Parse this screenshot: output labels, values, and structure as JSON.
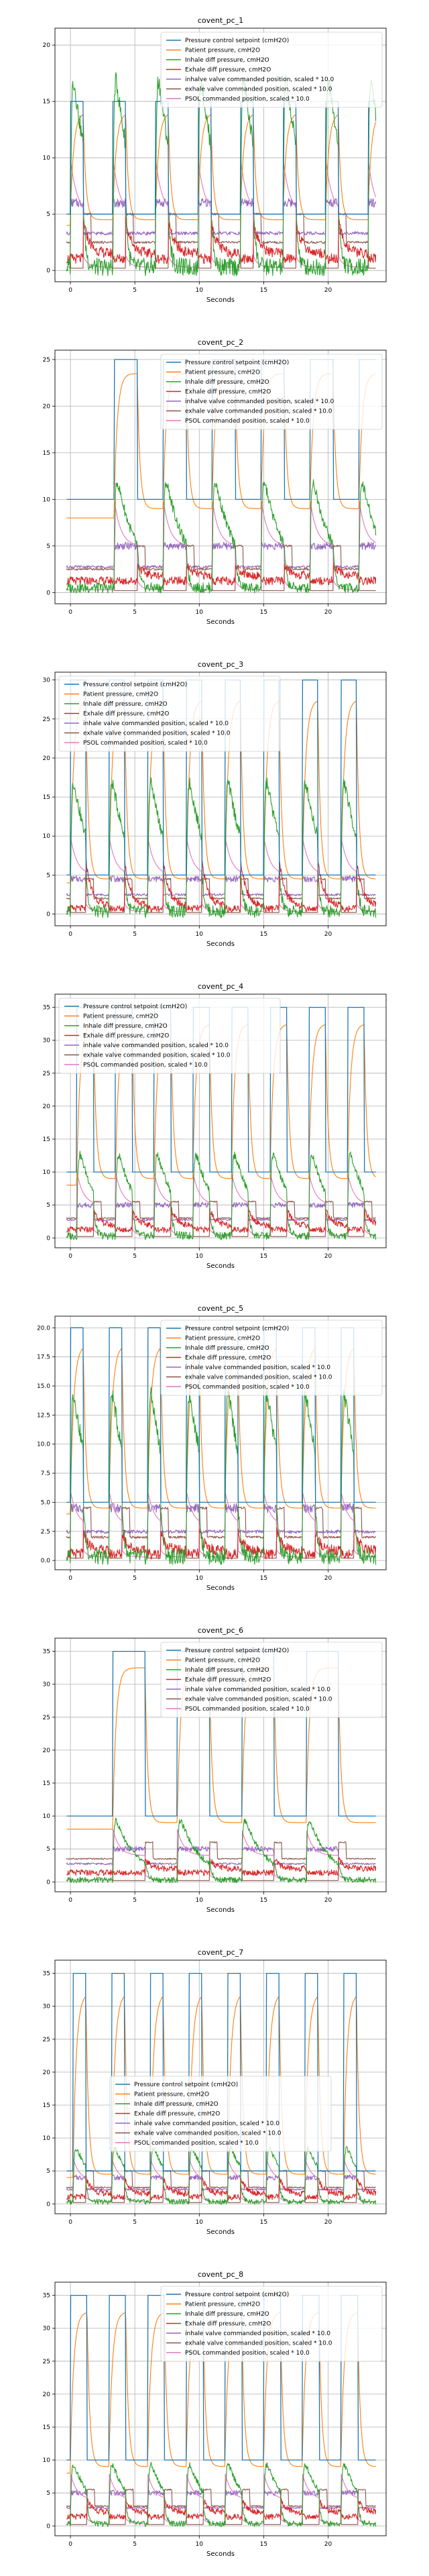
{
  "series_colors": [
    "#1f77b4",
    "#ff7f0e",
    "#2ca02c",
    "#d62728",
    "#9467bd",
    "#8c564b",
    "#e377c2"
  ],
  "chart_data": [
    {
      "type": "line",
      "title": "covent_pc_1",
      "xlabel": "Seconds",
      "ylabel": "",
      "xlim": [
        -1.2,
        24.5
      ],
      "ylim": [
        -1,
        21.5
      ],
      "xticks": [
        0,
        5,
        10,
        15,
        20
      ],
      "yticks": [
        0,
        5,
        10,
        15,
        20
      ],
      "grid": true,
      "legend_loc": "upper right",
      "breaths": [
        0,
        3.3,
        6.6,
        9.9,
        13.2,
        16.5,
        19.8,
        23.1
      ],
      "insp": 1.0,
      "levels": {
        "setpoint_high": 15,
        "setpoint_low": 5,
        "inhale_peak": 20,
        "inhale_base": 0.3,
        "exhale_peak": 4.5,
        "exhale_base": 1.5,
        "inhale_valve": 6.0,
        "exhale_valve": 2.5,
        "psol": 10
      },
      "series": [
        {
          "name": "Pressure control setpoint (cmH2O)"
        },
        {
          "name": "Patient pressure, cmH2O"
        },
        {
          "name": "Inhale diff pressure, cmH2O"
        },
        {
          "name": "Exhale diff pressure, cmH2O"
        },
        {
          "name": "inhalve valve commanded position, scaled * 10.0"
        },
        {
          "name": "exhale valve commanded position, scaled * 10.0"
        },
        {
          "name": "PSOL commanded position, scaled * 10.0"
        }
      ]
    },
    {
      "type": "line",
      "title": "covent_pc_2",
      "xlabel": "Seconds",
      "ylabel": "",
      "xlim": [
        -1.2,
        24.5
      ],
      "ylim": [
        -1.2,
        26
      ],
      "xticks": [
        0,
        5,
        10,
        15,
        20
      ],
      "yticks": [
        0,
        5,
        10,
        15,
        20,
        25
      ],
      "grid": true,
      "legend_loc": "upper right",
      "breaths": [
        3.4,
        7.2,
        11.0,
        14.8,
        18.6,
        22.4
      ],
      "insp": 1.8,
      "levels": {
        "setpoint_high": 25,
        "setpoint_low": 10,
        "inhale_peak": 14,
        "inhale_base": 0.5,
        "exhale_peak": 3.0,
        "exhale_base": 1.8,
        "inhale_valve": 5.0,
        "exhale_valve": 2.5,
        "psol": 10
      },
      "series": [
        {
          "name": "Pressure control setpoint (cmH2O)"
        },
        {
          "name": "Patient pressure, cmH2O"
        },
        {
          "name": "Inhale diff pressure, cmH2O"
        },
        {
          "name": "Exhale diff pressure, cmH2O"
        },
        {
          "name": "inhalve valve commanded position, scaled * 10.0"
        },
        {
          "name": "exhale valve commanded position, scaled * 10.0"
        },
        {
          "name": "PSOL commanded position, scaled * 10.0"
        }
      ]
    },
    {
      "type": "line",
      "title": "covent_pc_3",
      "xlabel": "Seconds",
      "ylabel": "",
      "xlim": [
        -1.2,
        24.5
      ],
      "ylim": [
        -1.5,
        31
      ],
      "xticks": [
        0,
        5,
        10,
        15,
        20
      ],
      "yticks": [
        0,
        5,
        10,
        15,
        20,
        25,
        30
      ],
      "grid": true,
      "legend_loc": "upper left",
      "breaths": [
        0,
        3.0,
        6.0,
        9.0,
        12.0,
        15.0,
        18.0,
        21.0
      ],
      "insp": 1.2,
      "levels": {
        "setpoint_high": 30,
        "setpoint_low": 5,
        "inhale_peak": 20,
        "inhale_base": 0.3,
        "exhale_peak": 7.0,
        "exhale_base": 1.0,
        "inhale_valve": 4.5,
        "exhale_valve": 2.0,
        "psol": 10
      },
      "series": [
        {
          "name": "Pressure control setpoint (cmH2O)"
        },
        {
          "name": "Patient pressure, cmH2O"
        },
        {
          "name": "Inhale diff pressure, cmH2O"
        },
        {
          "name": "Exhale diff pressure, cmH2O"
        },
        {
          "name": "inhale valve commanded position, scaled * 10.0"
        },
        {
          "name": "exhale valve commanded position, scaled * 10.0"
        },
        {
          "name": "PSOL commanded position, scaled * 10.0"
        }
      ]
    },
    {
      "type": "line",
      "title": "covent_pc_4",
      "xlabel": "Seconds",
      "ylabel": "",
      "xlim": [
        -1.2,
        24.5
      ],
      "ylim": [
        -1.5,
        37
      ],
      "xticks": [
        0,
        5,
        10,
        15,
        20
      ],
      "yticks": [
        0,
        5,
        10,
        15,
        20,
        25,
        30,
        35
      ],
      "grid": true,
      "legend_loc": "upper left",
      "breaths": [
        0.5,
        3.5,
        6.5,
        9.5,
        12.5,
        15.5,
        18.5,
        21.5
      ],
      "insp": 1.3,
      "levels": {
        "setpoint_high": 35,
        "setpoint_low": 10,
        "inhale_peak": 15,
        "inhale_base": 0.3,
        "exhale_peak": 4.5,
        "exhale_base": 1.8,
        "inhale_valve": 5.0,
        "exhale_valve": 3.0,
        "psol": 10
      },
      "series": [
        {
          "name": "Pressure control setpoint (cmH2O)"
        },
        {
          "name": "Patient pressure, cmH2O"
        },
        {
          "name": "Inhale diff pressure, cmH2O"
        },
        {
          "name": "Exhale diff pressure, cmH2O"
        },
        {
          "name": "inhale valve commanded position, scaled * 10.0"
        },
        {
          "name": "exhale valve commanded position, scaled * 10.0"
        },
        {
          "name": "PSOL commanded position, scaled * 10.0"
        }
      ]
    },
    {
      "type": "line",
      "title": "covent_pc_5",
      "xlabel": "Seconds",
      "ylabel": "",
      "xlim": [
        -1.2,
        24.5
      ],
      "ylim": [
        -0.8,
        21
      ],
      "xticks": [
        0,
        5,
        10,
        15,
        20
      ],
      "yticks": [
        0.0,
        2.5,
        5.0,
        7.5,
        10.0,
        12.5,
        15.0,
        17.5,
        20.0
      ],
      "grid": true,
      "legend_loc": "upper right",
      "breaths": [
        0,
        3.0,
        6.0,
        9.0,
        12.0,
        15.0,
        18.0,
        21.0
      ],
      "insp": 1.0,
      "levels": {
        "setpoint_high": 20,
        "setpoint_low": 5,
        "inhale_peak": 17,
        "inhale_base": 0.3,
        "exhale_peak": 2.5,
        "exhale_base": 0.8,
        "inhale_valve": 4.5,
        "exhale_valve": 2.0,
        "psol": 6
      },
      "series": [
        {
          "name": "Pressure control setpoint (cmH2O)"
        },
        {
          "name": "Patient pressure, cmH2O"
        },
        {
          "name": "Inhale diff pressure, cmH2O"
        },
        {
          "name": "Exhale diff pressure, cmH2O"
        },
        {
          "name": "inhale valve commanded position, scaled * 10.0"
        },
        {
          "name": "exhale valve commanded position, scaled * 10.0"
        },
        {
          "name": "PSOL commanded position, scaled * 10.0"
        }
      ]
    },
    {
      "type": "line",
      "title": "covent_pc_6",
      "xlabel": "Seconds",
      "ylabel": "",
      "xlim": [
        -1.2,
        24.5
      ],
      "ylim": [
        -1.5,
        37
      ],
      "xticks": [
        0,
        5,
        10,
        15,
        20
      ],
      "yticks": [
        0,
        5,
        10,
        15,
        20,
        25,
        30,
        35
      ],
      "grid": true,
      "legend_loc": "upper right",
      "breaths": [
        3.3,
        8.3,
        13.3,
        18.3
      ],
      "insp": 2.5,
      "levels": {
        "setpoint_high": 35,
        "setpoint_low": 10,
        "inhale_peak": 11,
        "inhale_base": 0.3,
        "exhale_peak": 3.5,
        "exhale_base": 2.0,
        "inhale_valve": 5.0,
        "exhale_valve": 3.5,
        "psol": 8
      },
      "series": [
        {
          "name": "Pressure control setpoint (cmH2O)"
        },
        {
          "name": "Patient pressure, cmH2O"
        },
        {
          "name": "Inhale diff pressure, cmH2O"
        },
        {
          "name": "Exhale diff pressure, cmH2O"
        },
        {
          "name": "inhale valve commanded position, scaled * 10.0"
        },
        {
          "name": "exhale valve commanded position, scaled * 10.0"
        },
        {
          "name": "PSOL commanded position, scaled * 10.0"
        }
      ]
    },
    {
      "type": "line",
      "title": "covent_pc_7",
      "xlabel": "Seconds",
      "ylabel": "",
      "xlim": [
        -1.2,
        24.5
      ],
      "ylim": [
        -1.5,
        37
      ],
      "xticks": [
        0,
        5,
        10,
        15,
        20
      ],
      "yticks": [
        0,
        5,
        10,
        15,
        20,
        25,
        30,
        35
      ],
      "grid": true,
      "legend_loc": "center",
      "breaths": [
        0.2,
        3.2,
        6.2,
        9.2,
        12.2,
        15.2,
        18.2,
        21.2
      ],
      "insp": 1.0,
      "levels": {
        "setpoint_high": 35,
        "setpoint_low": 5,
        "inhale_peak": 10,
        "inhale_base": 0.3,
        "exhale_peak": 4.0,
        "exhale_base": 1.5,
        "inhale_valve": 4.0,
        "exhale_valve": 2.5,
        "psol": 7
      },
      "series": [
        {
          "name": "Pressure control setpoint (cmH2O)"
        },
        {
          "name": "Patient pressure, cmH2O"
        },
        {
          "name": "Inhale diff pressure, cmH2O"
        },
        {
          "name": "Exhale diff pressure, cmH2O"
        },
        {
          "name": "inhale valve commanded position, scaled * 10.0"
        },
        {
          "name": "exhale valve commanded position, scaled * 10.0"
        },
        {
          "name": "PSOL commanded position, scaled * 10.0"
        }
      ]
    },
    {
      "type": "line",
      "title": "covent_pc_8",
      "xlabel": "Seconds",
      "ylabel": "",
      "xlim": [
        -1.2,
        24.5
      ],
      "ylim": [
        -1.5,
        37
      ],
      "xticks": [
        0,
        5,
        10,
        15,
        20
      ],
      "yticks": [
        0,
        5,
        10,
        15,
        20,
        25,
        30,
        35
      ],
      "grid": true,
      "legend_loc": "upper right",
      "breaths": [
        0,
        3.0,
        6.0,
        9.0,
        12.0,
        15.0,
        18.0,
        21.0
      ],
      "insp": 1.3,
      "levels": {
        "setpoint_high": 35,
        "setpoint_low": 10,
        "inhale_peak": 11,
        "inhale_base": 0.3,
        "exhale_peak": 4.0,
        "exhale_base": 2.0,
        "inhale_valve": 5.0,
        "exhale_valve": 3.0,
        "psol": 8
      },
      "series": [
        {
          "name": "Pressure control setpoint (cmH2O)"
        },
        {
          "name": "Patient pressure, cmH2O"
        },
        {
          "name": "Inhale diff pressure, cmH2O"
        },
        {
          "name": "Exhale diff pressure, cmH2O"
        },
        {
          "name": "inhale valve commanded position, scaled * 10.0"
        },
        {
          "name": "exhale valve commanded position, scaled * 10.0"
        },
        {
          "name": "PSOL commanded position, scaled * 10.0"
        }
      ]
    }
  ]
}
